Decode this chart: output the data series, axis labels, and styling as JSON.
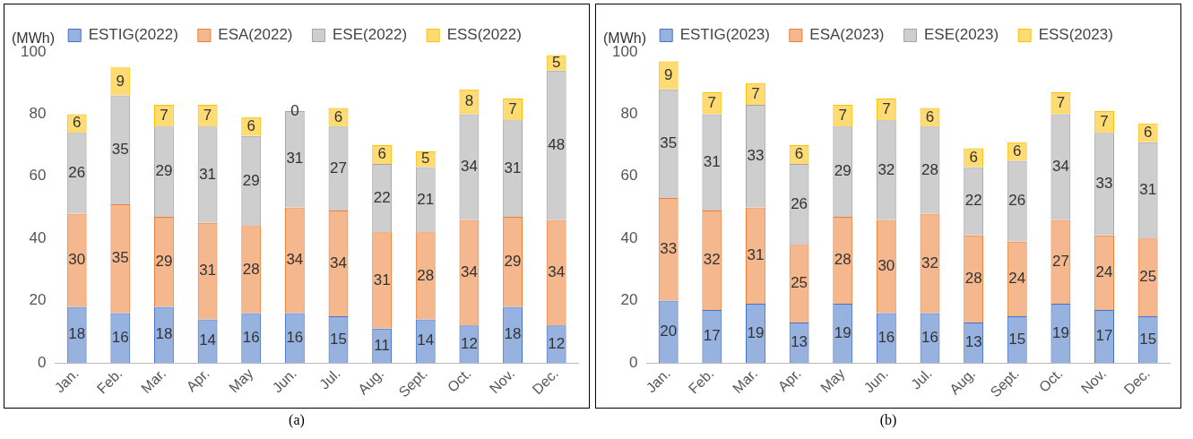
{
  "chart_data": [
    {
      "type": "bar",
      "stacked": true,
      "ylabel": "(MWh)",
      "annotations": [
        "(a)"
      ],
      "legend": "top",
      "grid": false,
      "data_labels": true,
      "categories": [
        "Jan.",
        "Feb.",
        "Mar.",
        "Apr.",
        "May",
        "Jun.",
        "Jul.",
        "Aug.",
        "Sept.",
        "Oct.",
        "Nov.",
        "Dec."
      ],
      "ylim": [
        0,
        100
      ],
      "yticks": [
        0,
        20,
        40,
        60,
        80,
        100
      ],
      "series": [
        {
          "name": "ESTIG(2022)",
          "color": "#4472c4",
          "values": [
            18,
            16,
            18,
            14,
            16,
            16,
            15,
            11,
            14,
            12,
            18,
            12
          ]
        },
        {
          "name": "ESA(2022)",
          "color": "#ed7d31",
          "values": [
            30,
            35,
            29,
            31,
            28,
            34,
            34,
            31,
            28,
            34,
            29,
            34
          ]
        },
        {
          "name": "ESE(2022)",
          "color": "#a5a5a5",
          "values": [
            26,
            35,
            29,
            31,
            29,
            31,
            27,
            22,
            21,
            34,
            31,
            48
          ]
        },
        {
          "name": "ESS(2022)",
          "color": "#ffc000",
          "values": [
            6,
            9,
            7,
            7,
            6,
            0,
            6,
            6,
            5,
            8,
            7,
            5
          ]
        }
      ]
    },
    {
      "type": "bar",
      "stacked": true,
      "ylabel": "(MWh)",
      "annotations": [
        "(b)"
      ],
      "legend": "top",
      "grid": false,
      "data_labels": true,
      "categories": [
        "Jan.",
        "Feb.",
        "Mar.",
        "Apr.",
        "May",
        "Jun.",
        "Jul.",
        "Aug.",
        "Sept.",
        "Oct.",
        "Nov.",
        "Dec."
      ],
      "ylim": [
        0,
        100
      ],
      "yticks": [
        0,
        20,
        40,
        60,
        80,
        100
      ],
      "series": [
        {
          "name": "ESTIG(2023)",
          "color": "#4472c4",
          "values": [
            20,
            17,
            19,
            13,
            19,
            16,
            16,
            13,
            15,
            19,
            17,
            15
          ]
        },
        {
          "name": "ESA(2023)",
          "color": "#ed7d31",
          "values": [
            33,
            32,
            31,
            25,
            28,
            30,
            32,
            28,
            24,
            27,
            24,
            25
          ]
        },
        {
          "name": "ESE(2023)",
          "color": "#a5a5a5",
          "values": [
            35,
            31,
            33,
            26,
            29,
            32,
            28,
            22,
            26,
            34,
            33,
            31
          ]
        },
        {
          "name": "ESS(2023)",
          "color": "#ffc000",
          "values": [
            9,
            7,
            7,
            6,
            7,
            7,
            6,
            6,
            6,
            7,
            7,
            6
          ]
        }
      ]
    }
  ]
}
